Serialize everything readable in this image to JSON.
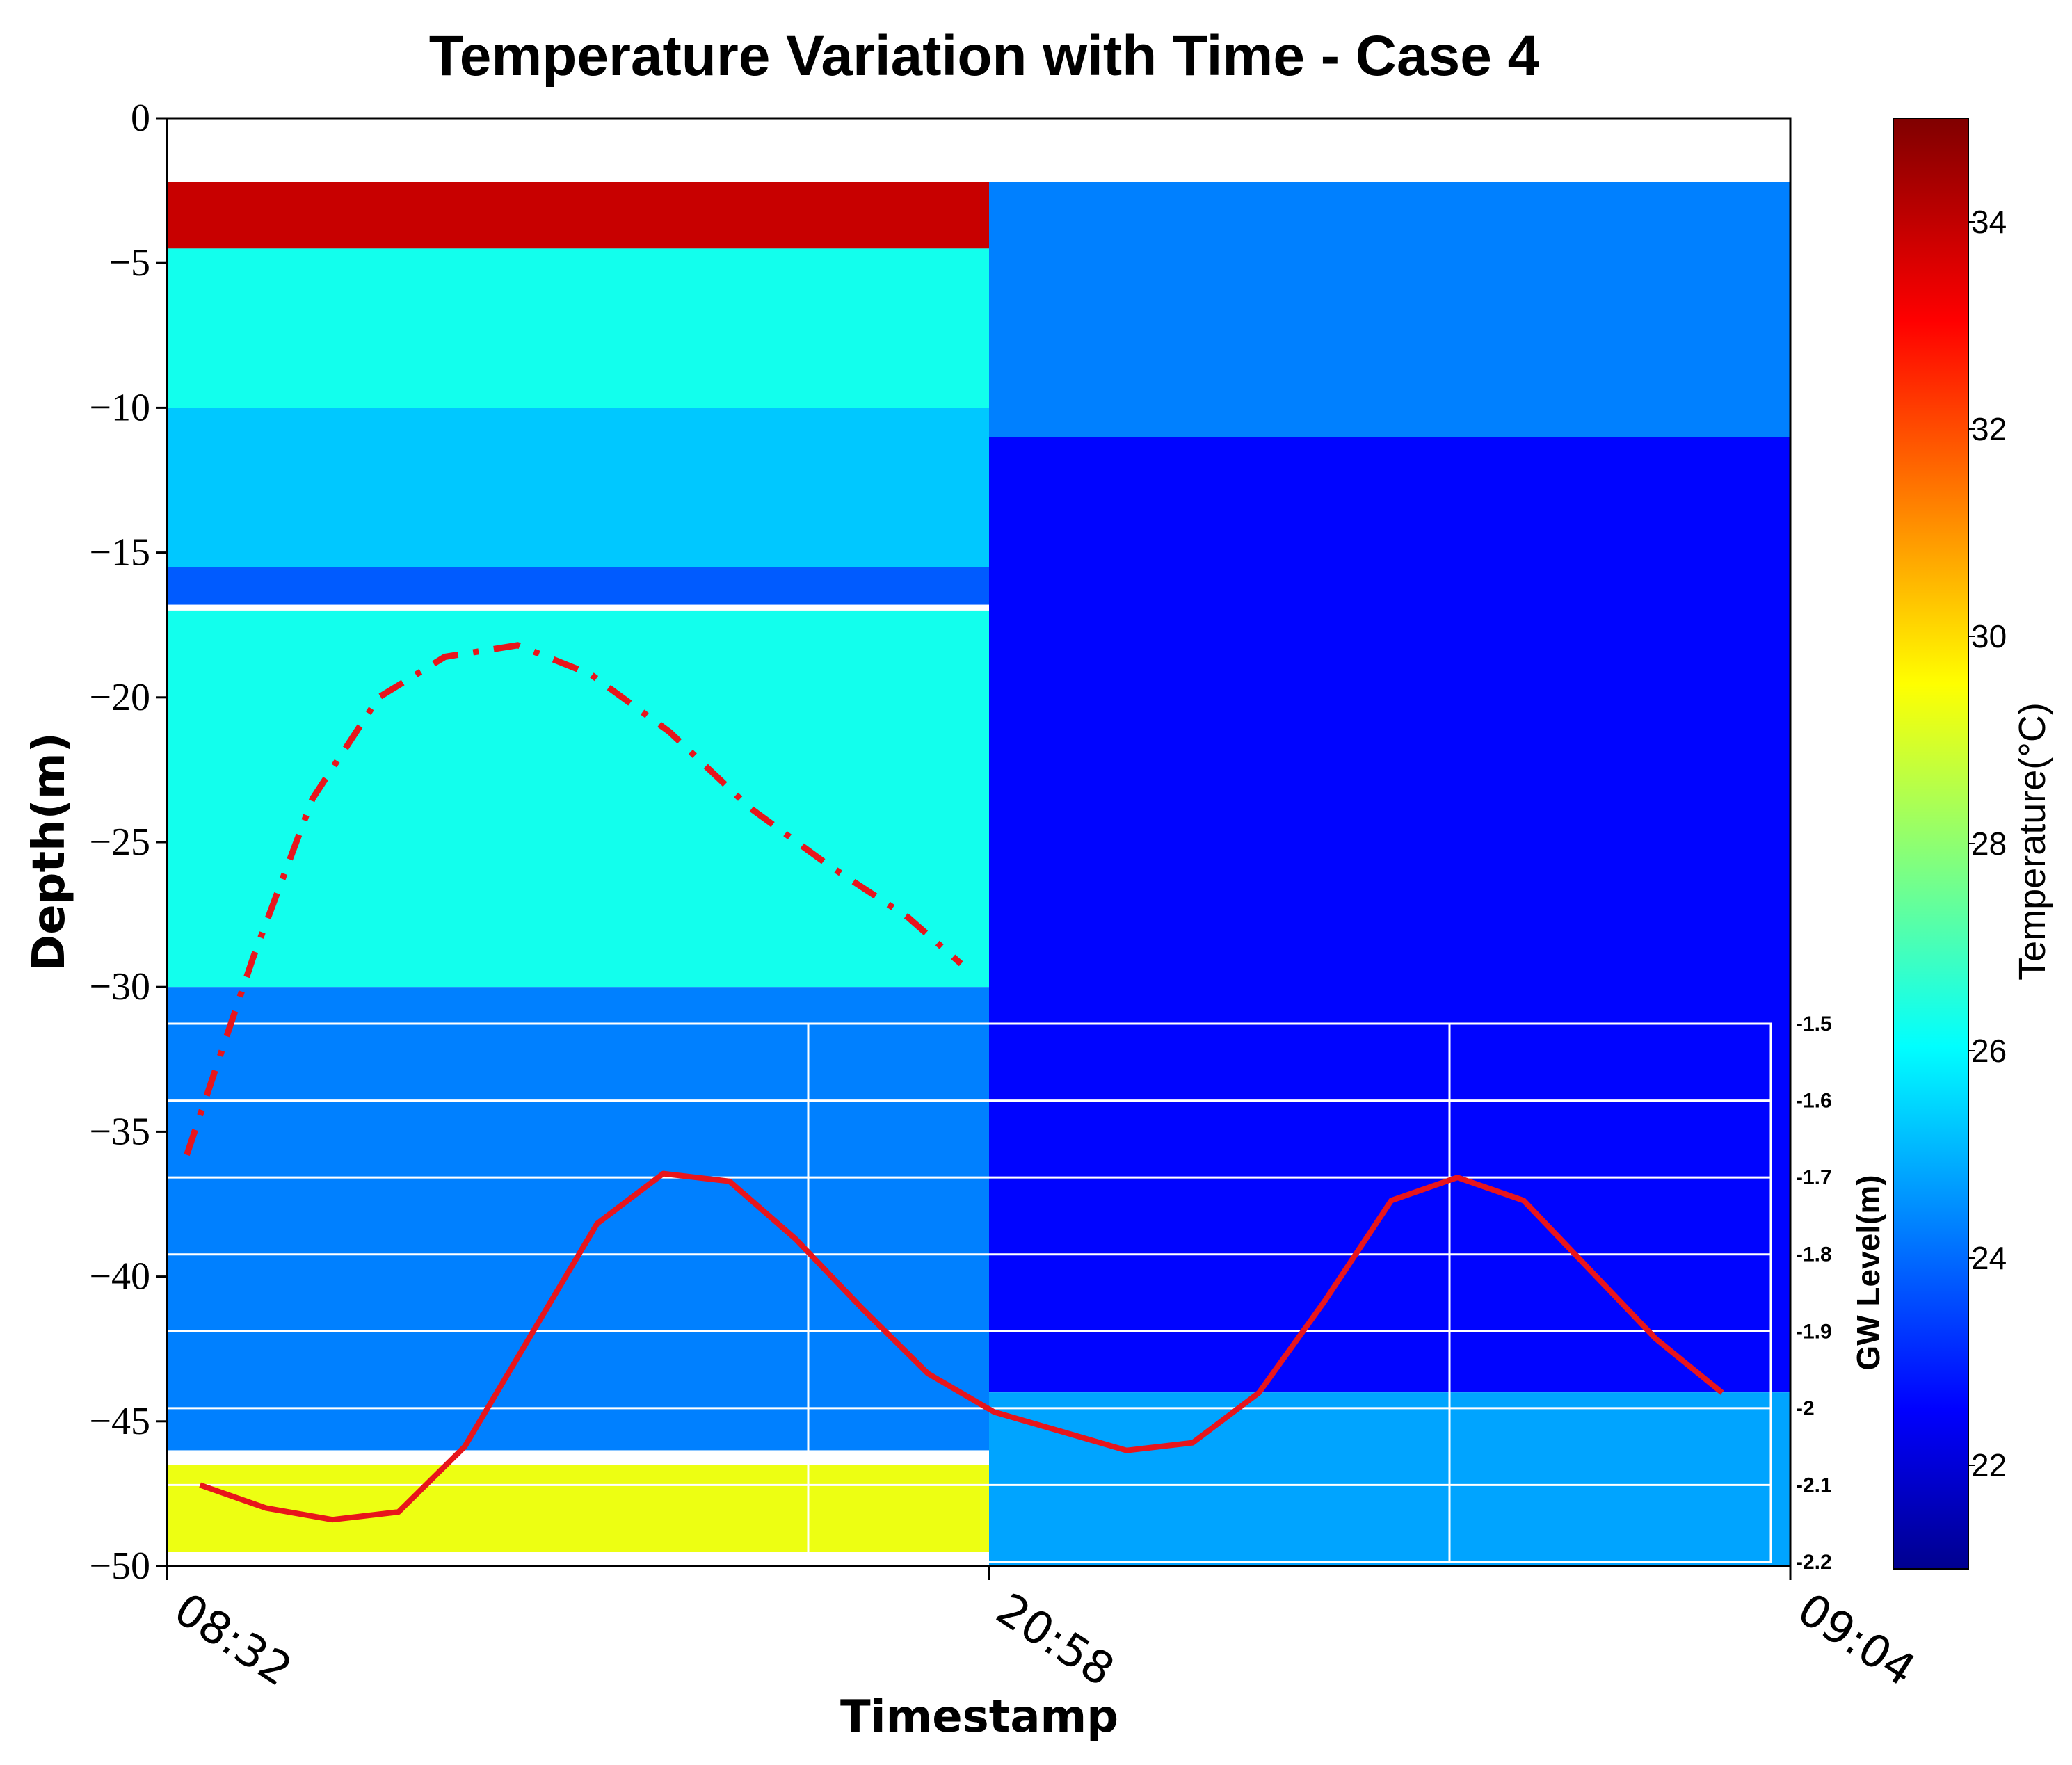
{
  "chart_data": {
    "type": "heatmap",
    "title": "Temperature Variation with Time - Case 4",
    "xlabel": "Timestamp",
    "ylabel": "Depth(m)",
    "x_ticks": [
      "08:32",
      "20:58",
      "09:04"
    ],
    "y_ticks": [
      0,
      -5,
      -10,
      -15,
      -20,
      -25,
      -30,
      -35,
      -40,
      -45,
      -50
    ],
    "ylim": [
      -50,
      0
    ],
    "colorbar": {
      "label": "Temperature(°C)",
      "ticks": [
        22,
        24,
        26,
        28,
        30,
        32,
        34
      ],
      "range": [
        21,
        35
      ],
      "colormap": "jet"
    },
    "heatmap_regions": [
      {
        "period": "day (08:32–20:58)",
        "depth_from": -2.2,
        "depth_to": -4.5,
        "temp": 34
      },
      {
        "period": "day (08:32–20:58)",
        "depth_from": -4.5,
        "depth_to": -10,
        "temp": 26.5
      },
      {
        "period": "day (08:32–20:58)",
        "depth_from": -10,
        "depth_to": -15.5,
        "temp": 25.5
      },
      {
        "period": "day (08:32–20:58)",
        "depth_from": -15.5,
        "depth_to": -16.8,
        "temp": 24
      },
      {
        "period": "day (08:32–20:58)",
        "depth_from": -17,
        "depth_to": -30,
        "temp": 26.5
      },
      {
        "period": "day (08:32–20:58)",
        "depth_from": -30,
        "depth_to": -46,
        "temp": 24.5
      },
      {
        "period": "day (08:32–20:58)",
        "depth_from": -46.5,
        "depth_to": -49.5,
        "temp": 29.5
      },
      {
        "period": "night (20:58–09:04)",
        "depth_from": -2.2,
        "depth_to": -11,
        "temp": 24.5
      },
      {
        "period": "night (20:58–09:04)",
        "depth_from": -11,
        "depth_to": -44,
        "temp": 22.8
      },
      {
        "period": "night (20:58–09:04)",
        "depth_from": -44,
        "depth_to": -50,
        "temp": 25
      }
    ],
    "series": [
      {
        "style": "dash-dot",
        "color": "#e8151b",
        "axis": "depth",
        "x_hours": [
          0.3,
          1.3,
          2.2,
          3.2,
          4.2,
          5.3,
          6.4,
          7.6,
          8.8,
          10.0,
          11.2,
          12.0
        ],
        "y": [
          -35.8,
          -29.0,
          -23.5,
          -20.0,
          -18.6,
          -18.2,
          -19.2,
          -21.2,
          -23.8,
          -25.8,
          -27.6,
          -29.2
        ]
      },
      {
        "style": "solid",
        "color": "#e8151b",
        "axis": "gw_level",
        "x_hours": [
          0.5,
          1.5,
          2.5,
          3.5,
          4.5,
          6.5,
          7.5,
          8.5,
          9.5,
          10.5,
          11.5,
          12.5,
          13.5,
          14.5,
          15.5,
          16.5,
          17.5,
          18.5,
          19.5,
          20.5,
          21.5,
          22.5,
          23.5
        ],
        "y": [
          -2.1,
          -2.13,
          -2.145,
          -2.135,
          -2.05,
          -1.76,
          -1.695,
          -1.705,
          -1.78,
          -1.87,
          -1.955,
          -2.005,
          -2.03,
          -2.055,
          -2.045,
          -1.98,
          -1.86,
          -1.73,
          -1.7,
          -1.73,
          -1.82,
          -1.91,
          -1.98
        ]
      }
    ],
    "gw_axis": {
      "label": "GW Level(m)",
      "ticks": [
        "-1.5",
        "-1.6",
        "-1.7",
        "-1.8",
        "-1.9",
        "-2",
        "-2.1",
        "-2.2"
      ],
      "range": [
        -2.2,
        -1.5
      ]
    },
    "colors": {
      "line": "#e8151b",
      "grid": "#ffffff"
    }
  }
}
